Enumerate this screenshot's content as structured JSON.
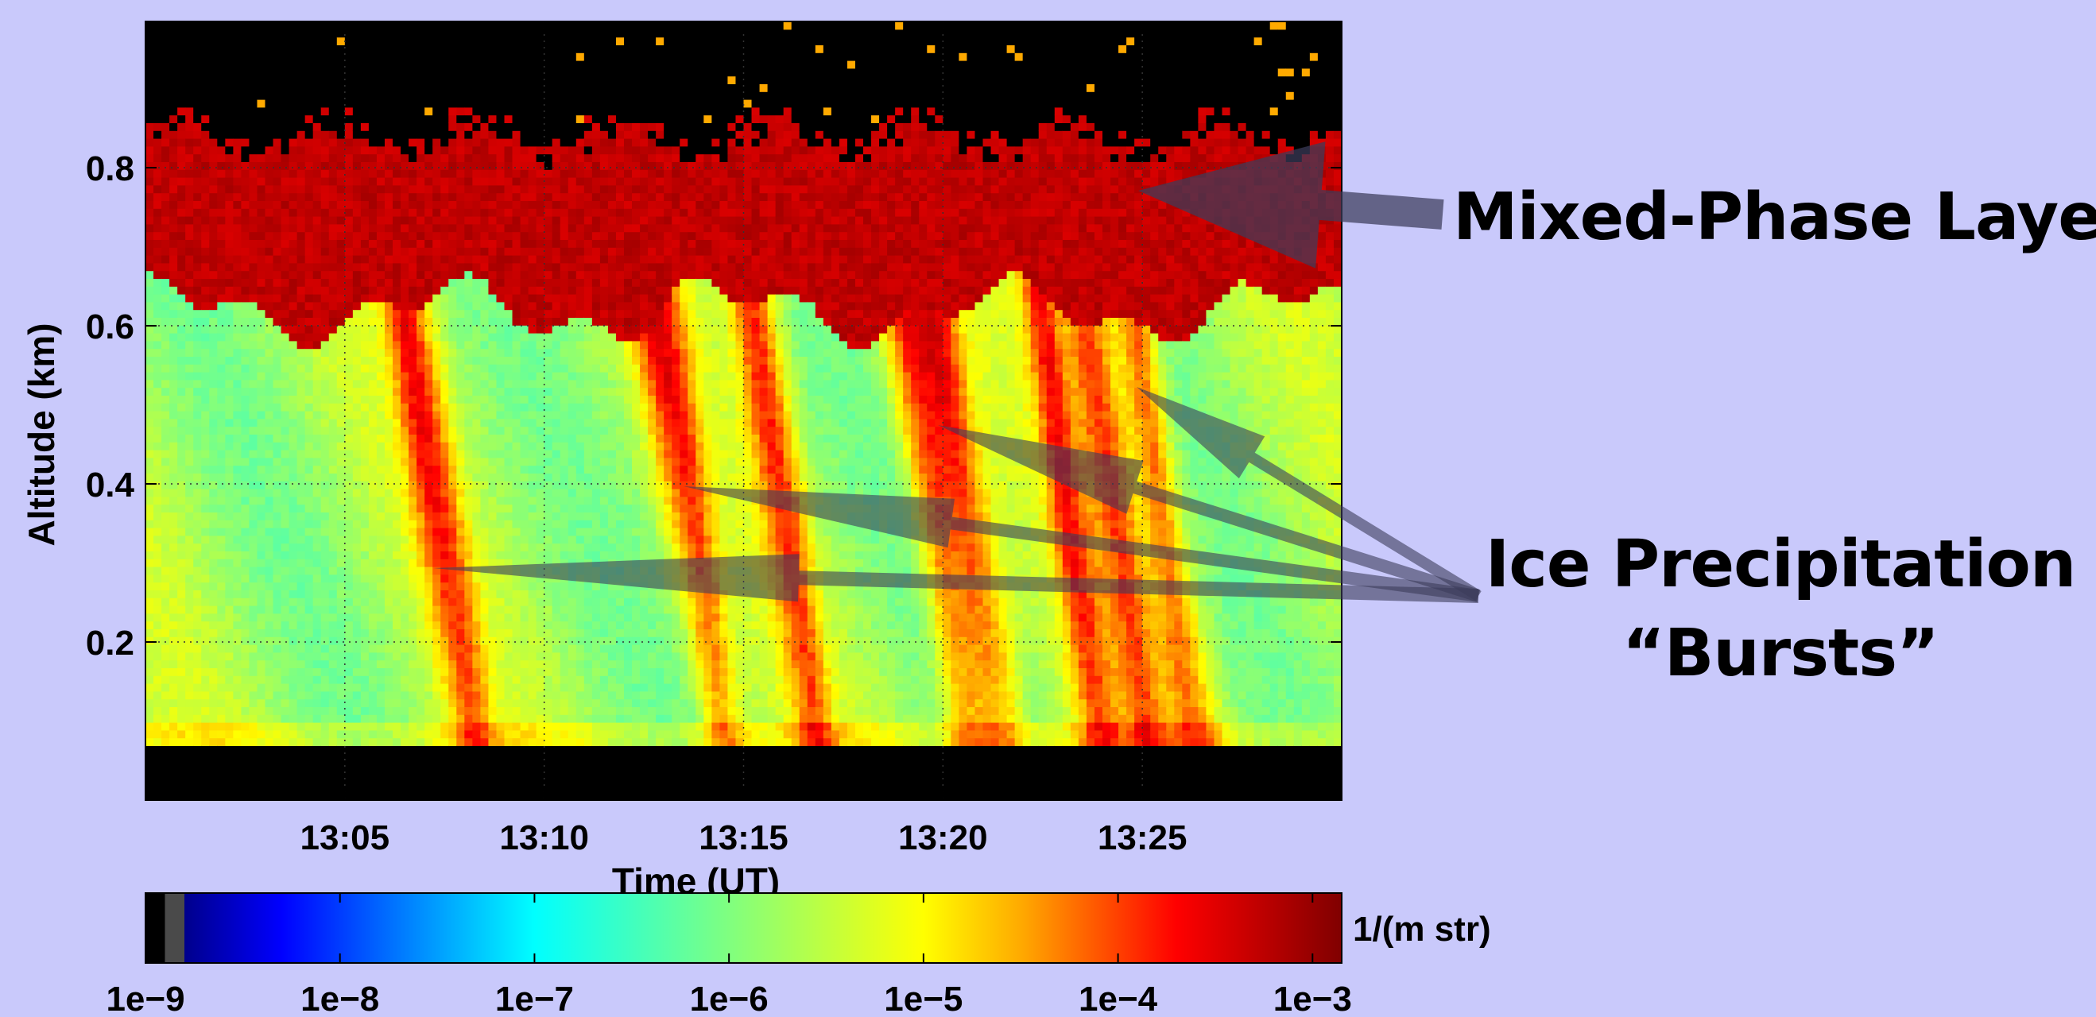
{
  "chart_data": {
    "type": "heatmap",
    "xlabel": "Time (UT)",
    "ylabel": "Altitude (km)",
    "x_ticks": [
      "13:05",
      "13:10",
      "13:15",
      "13:20",
      "13:25"
    ],
    "x_tick_minutes": [
      5,
      10,
      15,
      20,
      25
    ],
    "xlim_minutes": [
      0,
      30
    ],
    "y_ticks": [
      0.2,
      0.4,
      0.6,
      0.8
    ],
    "ylim": [
      0,
      0.985
    ],
    "grid": true,
    "colorbar": {
      "scale": "log",
      "ticks": [
        "1e−9",
        "1e−8",
        "1e−7",
        "1e−6",
        "1e−5",
        "1e−4",
        "1e−3"
      ],
      "min_exponent": -9,
      "max_exponent": -2.85,
      "unit": "1/(m str)",
      "colormap": [
        "#000000",
        "#4a4a4a",
        "#00008c",
        "#0000ff",
        "#0064ff",
        "#00ffff",
        "#ffff00",
        "#ffaa00",
        "#ff0000",
        "#800000"
      ]
    },
    "layers": {
      "surface_blank_top_km": 0.065,
      "mixed_phase_base_km": 0.62,
      "mixed_phase_top_km": 0.84
    },
    "bursts_minutes": [
      6.5,
      12.8,
      15.2,
      19.0,
      19.8,
      22.4,
      23.6,
      24.8
    ]
  },
  "annotations": {
    "mixed_phase": "Mixed-Phase Layer",
    "ice_line1": "Ice Precipitation",
    "ice_line2": "“Bursts”"
  },
  "colors": {
    "background": "#c9c9fb",
    "arrow": "#3c3c5a"
  }
}
